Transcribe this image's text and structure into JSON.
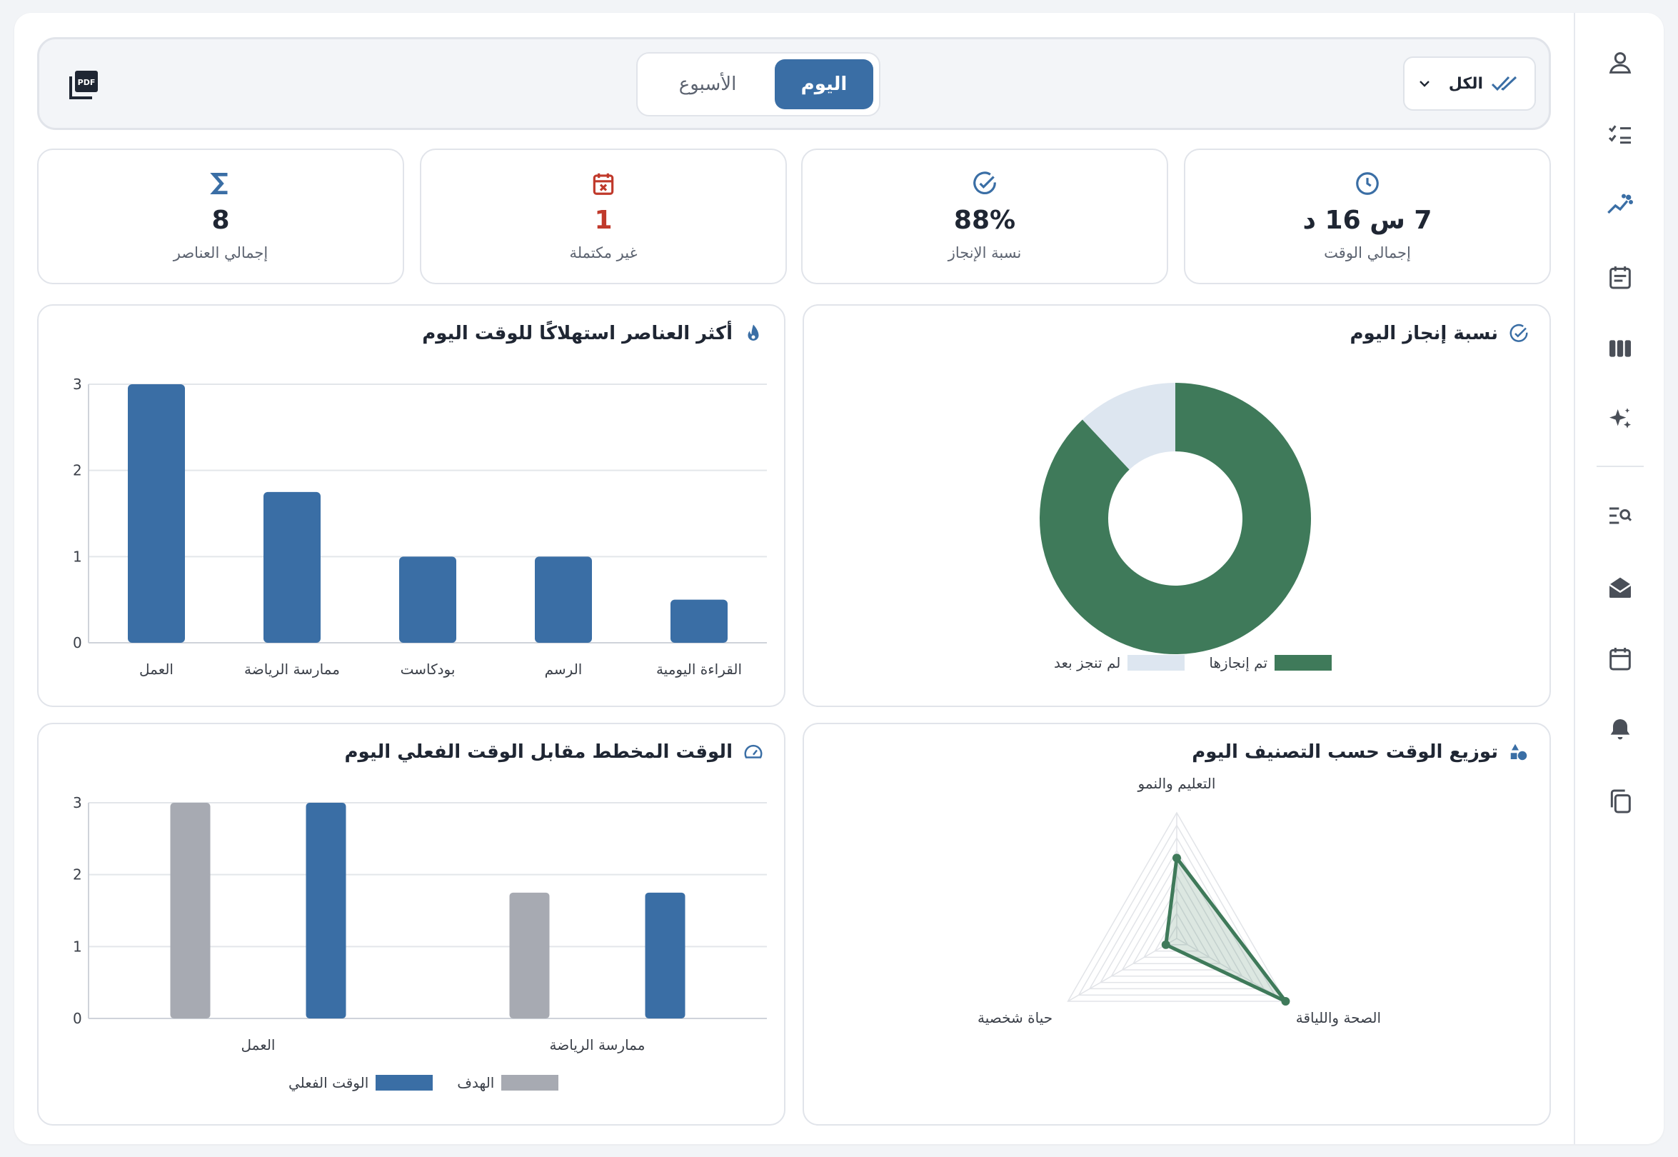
{
  "sidebar": {
    "items": [
      {
        "name": "profile",
        "icon": "user-icon",
        "active": false
      },
      {
        "name": "tasks",
        "icon": "checklist-icon",
        "active": false
      },
      {
        "name": "analytics",
        "icon": "trend-icon",
        "active": true
      },
      {
        "name": "daily",
        "icon": "calendar-note-icon",
        "active": false
      },
      {
        "name": "board",
        "icon": "columns-icon",
        "active": false
      },
      {
        "name": "ai",
        "icon": "sparkles-icon",
        "active": false
      },
      {
        "name": "search",
        "icon": "list-search-icon",
        "active": false
      },
      {
        "name": "inbox",
        "icon": "mail-open-icon",
        "active": false
      },
      {
        "name": "calendar",
        "icon": "calendar-icon",
        "active": false
      },
      {
        "name": "notifications",
        "icon": "bell-icon",
        "active": false
      },
      {
        "name": "copy",
        "icon": "copy-icon",
        "active": false
      }
    ]
  },
  "toolbar": {
    "filter_label": "الكل",
    "tabs": [
      {
        "label": "اليوم",
        "active": true
      },
      {
        "label": "الأسبوع",
        "active": false
      }
    ],
    "pdf_icon": "pdf-icon",
    "pdf_text": "PDF"
  },
  "stats": {
    "total_time": {
      "value": "7 س 16 د",
      "label": "إجمالي الوقت"
    },
    "completion": {
      "value": "88%",
      "label": "نسبة الإنجاز"
    },
    "incomplete": {
      "value": "1",
      "label": "غير مكتملة"
    },
    "total_items": {
      "value": "8",
      "label": "إجمالي العناصر"
    }
  },
  "colors": {
    "primary": "#3a6ea5",
    "green": "#3f7a5a",
    "light": "#dde6f0",
    "gray": "#a7aab2",
    "red": "#c0392b"
  },
  "cards": {
    "completion_title": "نسبة إنجاز اليوم",
    "top_items_title": "أكثر العناصر استهلاكًا للوقت اليوم",
    "distribution_title": "توزيع الوقت حسب التصنيف اليوم",
    "planned_title": "الوقت المخطط مقابل الوقت الفعلي اليوم"
  },
  "chart_data": [
    {
      "type": "pie",
      "labels": [
        "تم إنجازها",
        "لم تنجز بعد"
      ],
      "values": [
        88,
        12
      ],
      "legend": [
        "تم إنجازها",
        "لم تنجز بعد"
      ]
    },
    {
      "type": "bar",
      "categories": [
        "العمل",
        "ممارسة الرياضة",
        "بودكاست",
        "الرسم",
        "القراءة اليومية"
      ],
      "values": [
        3,
        1.75,
        1,
        1,
        0.5
      ],
      "ylim": [
        0,
        3
      ],
      "yticks": [
        "0",
        "1",
        "2",
        "3"
      ]
    },
    {
      "type": "radar",
      "axes": [
        "التعليم والنمو",
        "الصحة واللياقة",
        "حياة شخصية"
      ],
      "values": [
        3.2,
        5,
        0.5
      ],
      "rmax": 5
    },
    {
      "type": "bar",
      "categories": [
        "العمل",
        "ممارسة الرياضة"
      ],
      "series": [
        {
          "name": "الهدف",
          "values": [
            3,
            1.75
          ]
        },
        {
          "name": "الوقت الفعلي",
          "values": [
            3,
            1.75
          ]
        }
      ],
      "legend": [
        "الوقت الفعلي",
        "الهدف"
      ],
      "ylim": [
        0,
        3
      ],
      "yticks": [
        "0",
        "1",
        "2",
        "3"
      ]
    }
  ]
}
